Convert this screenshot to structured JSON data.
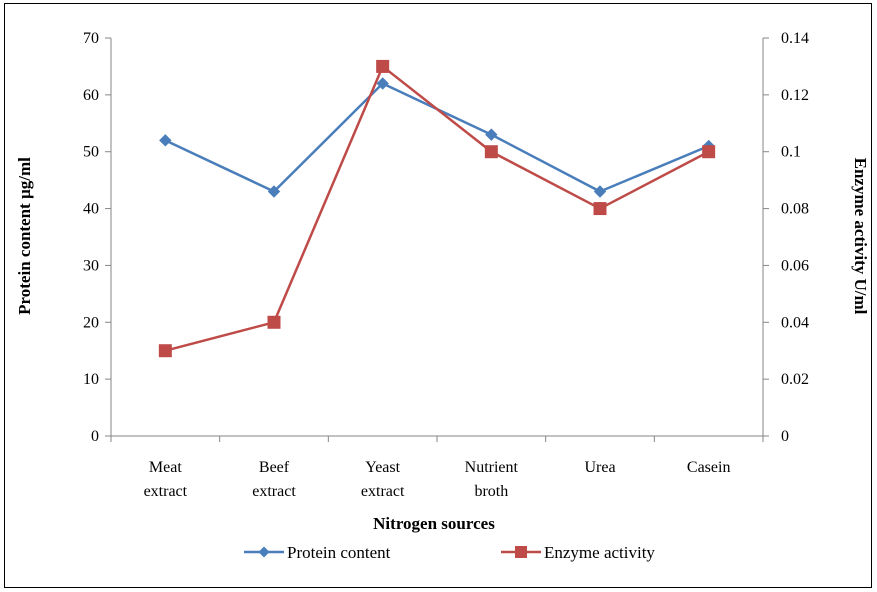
{
  "chart_data": {
    "type": "line",
    "categories": [
      [
        "Meat",
        "extract"
      ],
      [
        "Beef",
        "extract"
      ],
      [
        "Yeast",
        "extract"
      ],
      [
        "Nutrient",
        "broth"
      ],
      [
        "Urea"
      ],
      [
        "Casein"
      ]
    ],
    "xlabel": "Nitrogen sources",
    "ylabel": "Protein content µg/ml",
    "y2label": "Enzyme activity U/ml",
    "ylim": [
      0,
      70
    ],
    "yticks": [
      "0",
      "10",
      "20",
      "30",
      "40",
      "50",
      "60",
      "70"
    ],
    "y2lim": [
      0,
      0.14
    ],
    "y2ticks": [
      "0",
      "0.02",
      "0.04",
      "0.06",
      "0.08",
      "0.1",
      "0.12",
      "0.14"
    ],
    "grid": false,
    "legend_position": "bottom",
    "series": [
      {
        "name": "Protein content",
        "axis": "left",
        "color": "#4a7ebb",
        "marker": "diamond",
        "values": [
          52,
          43,
          62,
          53,
          43,
          51
        ]
      },
      {
        "name": "Enzyme activity",
        "axis": "right",
        "color": "#be4b48",
        "marker": "square",
        "values": [
          0.03,
          0.04,
          0.13,
          0.1,
          0.08,
          0.1
        ]
      }
    ]
  }
}
